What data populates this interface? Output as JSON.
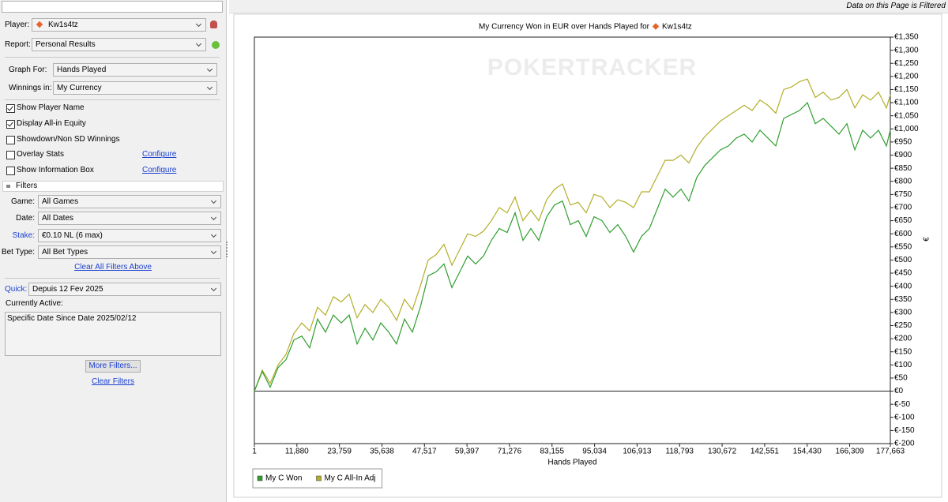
{
  "filter_notice": "Data on this Page is Filtered",
  "sidebar": {
    "player": {
      "label": "Player:",
      "value": "Kw1s4tz"
    },
    "report": {
      "label": "Report:",
      "value": "Personal Results"
    },
    "graph_for": {
      "label": "Graph For:",
      "value": "Hands Played"
    },
    "winnings_in": {
      "label": "Winnings in:",
      "value": "My Currency"
    },
    "options": [
      {
        "label": "Show Player Name",
        "checked": true
      },
      {
        "label": "Display All-in Equity",
        "checked": true
      },
      {
        "label": "Showdown/Non SD Winnings",
        "checked": false
      },
      {
        "label": "Overlay Stats",
        "checked": false,
        "link": "Configure"
      },
      {
        "label": "Show Information Box",
        "checked": false,
        "link": "Configure"
      }
    ],
    "filters": {
      "title": "Filters",
      "fields": [
        {
          "label": "Game:",
          "value": "All Games"
        },
        {
          "label": "Date:",
          "value": "All Dates"
        },
        {
          "label": "Stake:",
          "value": "€0.10 NL (6 max)"
        },
        {
          "label": "Bet Type:",
          "value": "All Bet Types"
        }
      ],
      "clear_above": "Clear All Filters Above",
      "quick": {
        "label": "Quick:",
        "value": "Depuis 12 Fev 2025"
      },
      "active_label": "Currently Active:",
      "active_text": "Specific Date Since Date 2025/02/12",
      "more": "More Filters...",
      "clear": "Clear Filters"
    }
  },
  "chart_data": {
    "type": "line",
    "title": "My Currency Won in EUR over Hands Played for",
    "title_player": "Kw1s4tz",
    "watermark": "POKERTRACKER",
    "xlabel": "Hands Played",
    "ylabel": "€",
    "x": [
      1,
      2208,
      4415,
      6622,
      8829,
      11036,
      13243,
      15450,
      17657,
      19864,
      22071,
      24278,
      26485,
      28692,
      30899,
      33106,
      35313,
      37520,
      39727,
      41934,
      44141,
      46348,
      48555,
      50762,
      52969,
      55176,
      57383,
      59590,
      61797,
      64004,
      66211,
      68418,
      70625,
      72832,
      75039,
      77246,
      79453,
      81660,
      83867,
      86074,
      88281,
      90488,
      92695,
      94902,
      97109,
      99316,
      101523,
      103730,
      105937,
      108144,
      110351,
      112558,
      114765,
      116972,
      119179,
      121386,
      123593,
      125800,
      128007,
      130214,
      132421,
      134628,
      136835,
      139042,
      141249,
      143456,
      145663,
      147870,
      150077,
      152284,
      154491,
      156698,
      158905,
      161112,
      163319,
      165526,
      167733,
      169940,
      172147,
      174354,
      176561,
      177663
    ],
    "xlim": [
      1,
      177663
    ],
    "xticks": [
      1,
      {
        "value": 11880,
        "label": "11,880"
      },
      {
        "value": 23759,
        "label": "23,759"
      },
      {
        "value": 35638,
        "label": "35,638"
      },
      {
        "value": 47517,
        "label": "47,517"
      },
      {
        "value": 59397,
        "label": "59,397"
      },
      {
        "value": 71276,
        "label": "71,276"
      },
      {
        "value": 83155,
        "label": "83,155"
      },
      {
        "value": 95034,
        "label": "95,034"
      },
      {
        "value": 106913,
        "label": "106,913"
      },
      {
        "value": 118793,
        "label": "118,793"
      },
      {
        "value": 130672,
        "label": "130,672"
      },
      {
        "value": 142551,
        "label": "142,551"
      },
      {
        "value": 154430,
        "label": "154,430"
      },
      {
        "value": 166309,
        "label": "166,309"
      },
      {
        "value": 177663,
        "label": "177,663"
      }
    ],
    "ylim": [
      -200,
      1350
    ],
    "yticks": [
      {
        "value": -200,
        "label": "€-200"
      },
      {
        "value": -150,
        "label": "€-150"
      },
      {
        "value": -100,
        "label": "€-100"
      },
      {
        "value": -50,
        "label": "€-50"
      },
      {
        "value": 0,
        "label": "€0"
      },
      {
        "value": 50,
        "label": "€50"
      },
      {
        "value": 100,
        "label": "€100"
      },
      {
        "value": 150,
        "label": "€150"
      },
      {
        "value": 200,
        "label": "€200"
      },
      {
        "value": 250,
        "label": "€250"
      },
      {
        "value": 300,
        "label": "€300"
      },
      {
        "value": 350,
        "label": "€350"
      },
      {
        "value": 400,
        "label": "€400"
      },
      {
        "value": 450,
        "label": "€450"
      },
      {
        "value": 500,
        "label": "€500"
      },
      {
        "value": 550,
        "label": "€550"
      },
      {
        "value": 600,
        "label": "€600"
      },
      {
        "value": 650,
        "label": "€650"
      },
      {
        "value": 700,
        "label": "€700"
      },
      {
        "value": 750,
        "label": "€750"
      },
      {
        "value": 800,
        "label": "€800"
      },
      {
        "value": 850,
        "label": "€850"
      },
      {
        "value": 900,
        "label": "€900"
      },
      {
        "value": 950,
        "label": "€950"
      },
      {
        "value": 1000,
        "label": "€1,000"
      },
      {
        "value": 1050,
        "label": "€1,050"
      },
      {
        "value": 1100,
        "label": "€1,100"
      },
      {
        "value": 1150,
        "label": "€1,150"
      },
      {
        "value": 1200,
        "label": "€1,200"
      },
      {
        "value": 1250,
        "label": "€1,250"
      },
      {
        "value": 1300,
        "label": "€1,300"
      },
      {
        "value": 1350,
        "label": "€1,350"
      }
    ],
    "grid": false,
    "legend": "bottom-left",
    "series": [
      {
        "name": "My C Won",
        "color": "#2f9e2f",
        "values": [
          0,
          75,
          15,
          90,
          120,
          195,
          210,
          165,
          275,
          225,
          290,
          260,
          290,
          180,
          240,
          195,
          260,
          225,
          180,
          275,
          225,
          320,
          440,
          455,
          485,
          395,
          455,
          515,
          485,
          515,
          575,
          620,
          605,
          680,
          575,
          620,
          575,
          665,
          710,
          725,
          635,
          650,
          590,
          665,
          650,
          605,
          635,
          590,
          530,
          590,
          620,
          695,
          770,
          740,
          770,
          725,
          815,
          860,
          890,
          920,
          935,
          965,
          980,
          950,
          995,
          965,
          935,
          1040,
          1055,
          1070,
          1100,
          1020,
          1040,
          1010,
          980,
          1020,
          920,
          995,
          965,
          995,
          935,
          995
        ]
      },
      {
        "name": "My C All-In Adj",
        "color": "#b3ae2a",
        "values": [
          0,
          80,
          30,
          100,
          140,
          220,
          260,
          230,
          320,
          290,
          360,
          340,
          370,
          280,
          330,
          300,
          350,
          320,
          270,
          350,
          310,
          400,
          500,
          520,
          560,
          480,
          540,
          600,
          590,
          610,
          650,
          700,
          680,
          740,
          650,
          690,
          650,
          730,
          770,
          790,
          710,
          720,
          680,
          750,
          740,
          700,
          730,
          720,
          700,
          760,
          760,
          820,
          880,
          880,
          900,
          870,
          930,
          970,
          1000,
          1030,
          1050,
          1070,
          1090,
          1070,
          1110,
          1090,
          1060,
          1150,
          1160,
          1180,
          1190,
          1120,
          1140,
          1110,
          1120,
          1150,
          1080,
          1130,
          1110,
          1140,
          1080,
          1130
        ]
      }
    ]
  }
}
